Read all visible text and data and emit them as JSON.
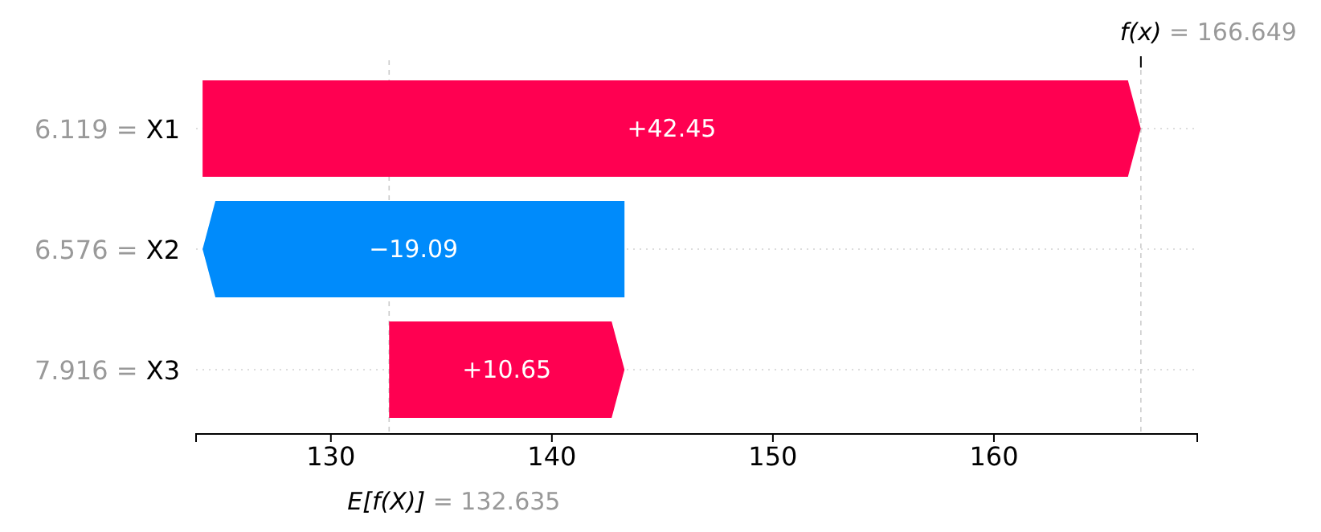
{
  "chart_data": {
    "type": "bar",
    "orientation": "horizontal",
    "categories": [
      "6.119 = X1",
      "6.576 = X2",
      "7.916 = X3"
    ],
    "values": [
      42.45,
      -19.09,
      10.65
    ],
    "base": [
      124.195,
      143.285,
      132.635
    ],
    "colors": [
      "#ff0051",
      "#008bfb",
      "#ff0051"
    ],
    "value_labels": [
      "+42.45",
      "−19.09",
      "+10.65"
    ],
    "xlim": [
      123.9,
      169.2
    ],
    "xticks": [
      130,
      140,
      150,
      160
    ],
    "grid": "y",
    "ref_lines": [
      {
        "axis": "x",
        "value": 132.635,
        "label": "E[f(X)] = 132.635",
        "color": "#cccccc",
        "line_style": "dashed"
      },
      {
        "axis": "x",
        "value": 166.649,
        "label": "f(x) = 166.649",
        "color": "#cccccc",
        "line_style": "dashed"
      }
    ]
  }
}
